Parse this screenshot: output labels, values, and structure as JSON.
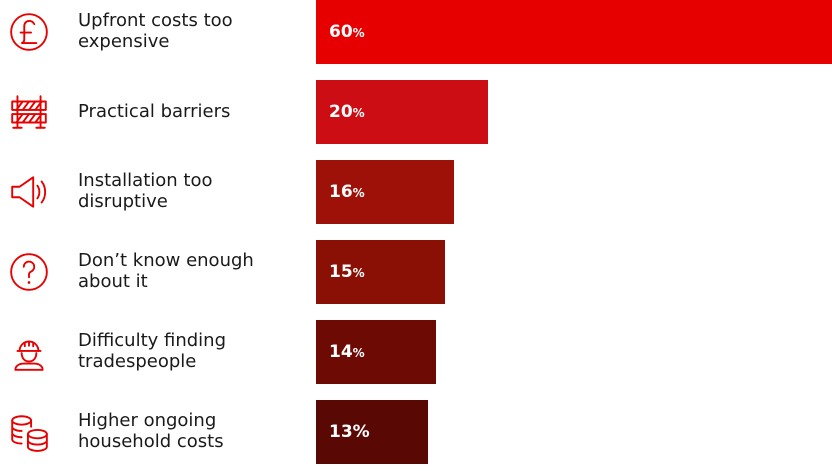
{
  "chart_data": {
    "type": "bar",
    "orientation": "horizontal",
    "title": "",
    "xlabel": "",
    "ylabel": "",
    "categories": [
      "Upfront costs too expensive",
      "Practical barriers",
      "Installation too disruptive",
      "Don’t know enough about it",
      "Difficulty finding tradespeople",
      "Higher ongoing household costs"
    ],
    "values": [
      60,
      20,
      16,
      15,
      14,
      13
    ],
    "value_labels": [
      "60",
      "20",
      "16",
      "15",
      "14",
      "13"
    ],
    "units": [
      "%",
      "%",
      "%",
      "%",
      "%",
      "%"
    ],
    "label_lines": [
      [
        "Upfront costs too",
        "expensive"
      ],
      [
        "Practical barriers"
      ],
      [
        "Installation too",
        "disruptive"
      ],
      [
        "Don’t know enough",
        "about it"
      ],
      [
        "Difficulty finding",
        "tradespeople"
      ],
      [
        "Higher ongoing",
        "household costs"
      ]
    ],
    "icons": [
      "pound-icon",
      "barrier-icon",
      "speaker-icon",
      "question-icon",
      "hardhat-worker-icon",
      "coins-icon"
    ],
    "colors": [
      "#e60000",
      "#cc0d14",
      "#9e1108",
      "#8a1006",
      "#6e0a04",
      "#5a0803"
    ],
    "icon_color": "#e60000",
    "xlim": [
      0,
      60
    ],
    "grid": false,
    "legend": "none"
  }
}
